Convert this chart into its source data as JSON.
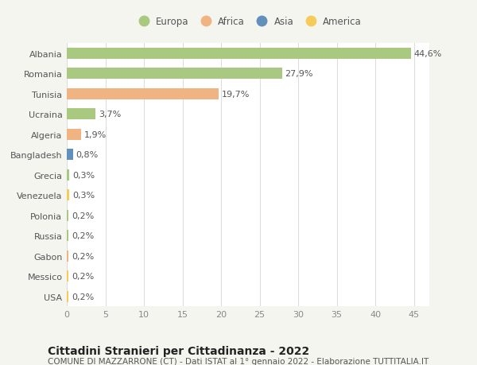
{
  "countries": [
    "Albania",
    "Romania",
    "Tunisia",
    "Ucraina",
    "Algeria",
    "Bangladesh",
    "Grecia",
    "Venezuela",
    "Polonia",
    "Russia",
    "Gabon",
    "Messico",
    "USA"
  ],
  "values": [
    44.6,
    27.9,
    19.7,
    3.7,
    1.9,
    0.8,
    0.3,
    0.3,
    0.2,
    0.2,
    0.2,
    0.2,
    0.2
  ],
  "labels": [
    "44,6%",
    "27,9%",
    "19,7%",
    "3,7%",
    "1,9%",
    "0,8%",
    "0,3%",
    "0,3%",
    "0,2%",
    "0,2%",
    "0,2%",
    "0,2%",
    "0,2%"
  ],
  "continents": [
    "Europa",
    "Europa",
    "Africa",
    "Europa",
    "Africa",
    "Asia",
    "Europa",
    "America",
    "Europa",
    "Europa",
    "Africa",
    "America",
    "America"
  ],
  "continent_colors": {
    "Europa": "#a8c97f",
    "Africa": "#f0b482",
    "Asia": "#6090bb",
    "America": "#f5cc5a"
  },
  "legend_order": [
    "Europa",
    "Africa",
    "Asia",
    "America"
  ],
  "legend_colors": [
    "#a8c97f",
    "#f0b482",
    "#6090bb",
    "#f5cc5a"
  ],
  "xlim": [
    0,
    47
  ],
  "xticks": [
    0,
    5,
    10,
    15,
    20,
    25,
    30,
    35,
    40,
    45
  ],
  "title": "Cittadini Stranieri per Cittadinanza - 2022",
  "subtitle": "COMUNE DI MAZZARRONE (CT) - Dati ISTAT al 1° gennaio 2022 - Elaborazione TUTTITALIA.IT",
  "outer_bg": "#f5f5f0",
  "plot_bg": "#ffffff",
  "grid_color": "#dddddd",
  "bar_height": 0.55,
  "label_fontsize": 8,
  "tick_fontsize": 8,
  "ytick_fontsize": 8,
  "title_fontsize": 10,
  "subtitle_fontsize": 7.5,
  "legend_fontsize": 8.5
}
